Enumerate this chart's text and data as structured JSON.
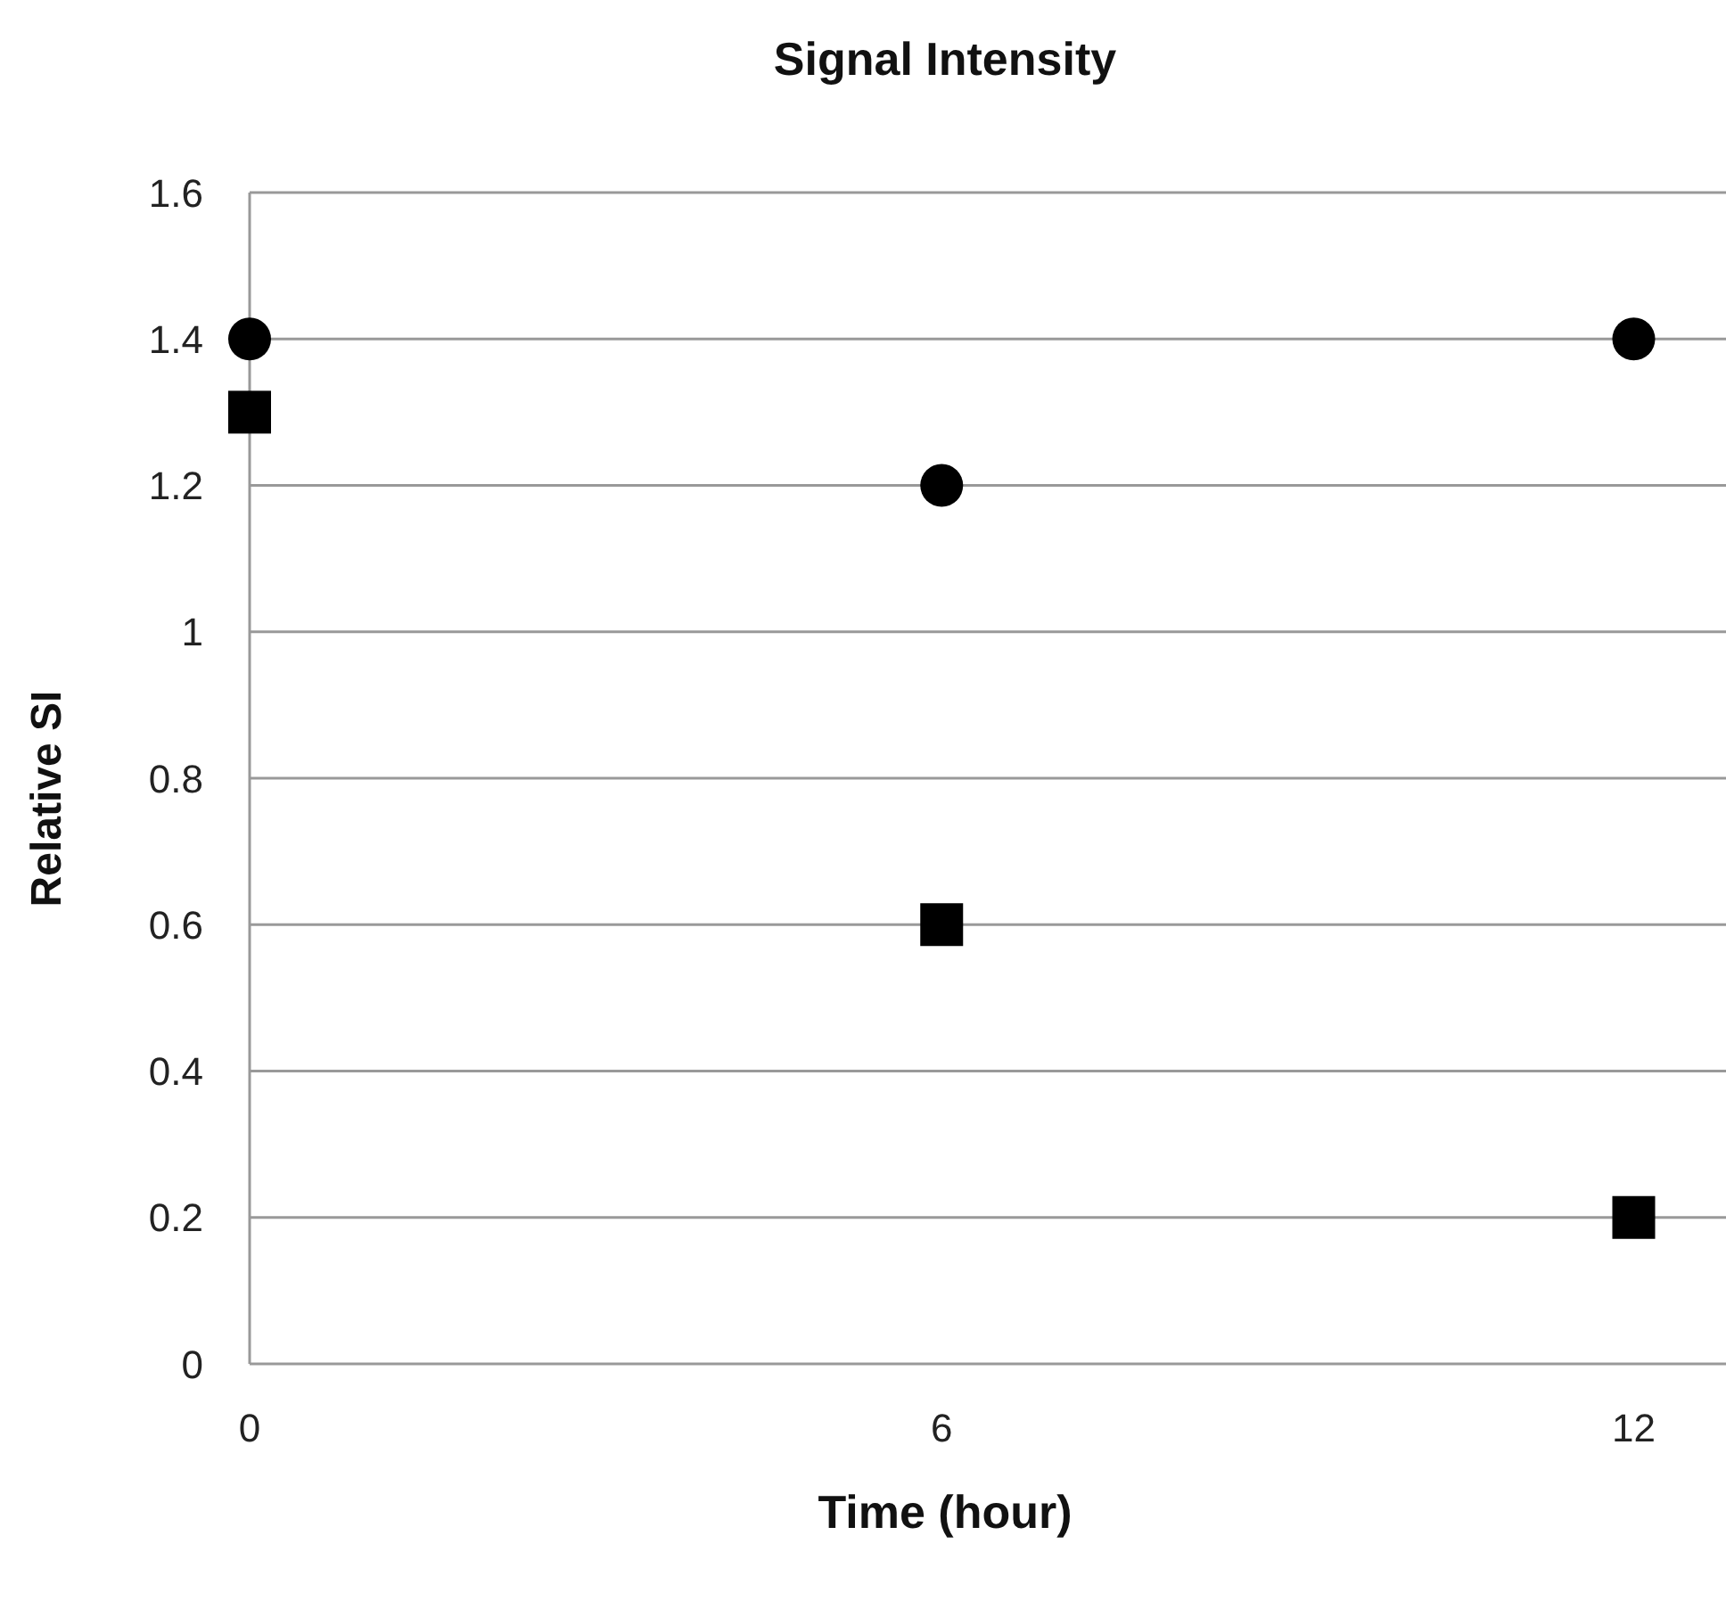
{
  "chart_data": {
    "type": "scatter",
    "title": "Signal Intensity",
    "xlabel": "Time (hour)",
    "ylabel": "Relative SI",
    "x": [
      0,
      6,
      12
    ],
    "series": [
      {
        "color": "#000000",
        "marker": "circle",
        "values": [
          1.4,
          1.2,
          1.4
        ]
      },
      {
        "color": "#000000",
        "marker": "square",
        "values": [
          1.3,
          0.6,
          0.2
        ]
      }
    ],
    "xlim": [
      0,
      12.8
    ],
    "xticks": [
      0,
      6,
      12
    ],
    "ylim": [
      0,
      1.6
    ],
    "yticks": [
      0,
      0.2,
      0.4,
      0.6,
      0.8,
      1,
      1.2,
      1.4,
      1.6
    ],
    "grid": "y",
    "legend": false
  }
}
